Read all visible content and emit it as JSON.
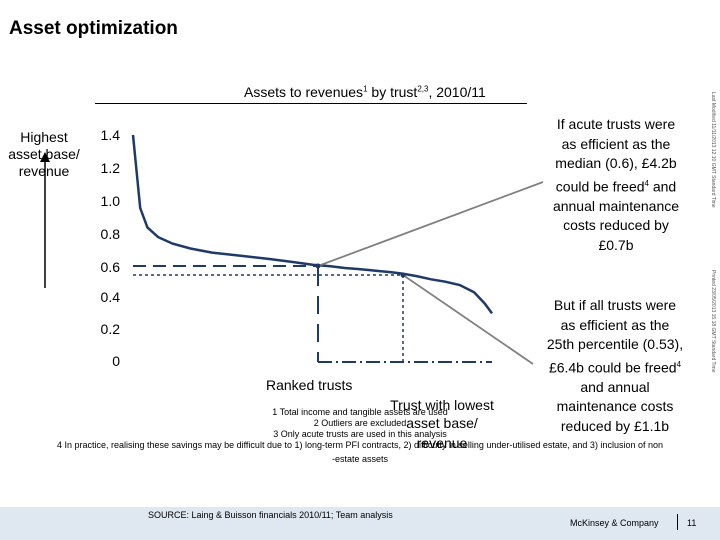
{
  "page": {
    "title": "Asset optimization"
  },
  "chart_title": {
    "text": "Assets to revenues",
    "sup1": "1",
    "mid": " by trust",
    "sup2": "2,3",
    "tail": ", 2010/11"
  },
  "y_axis_title": {
    "line1": "Highest",
    "line2": "asset base/",
    "line3": "revenue"
  },
  "chart_data": {
    "type": "line",
    "ytick_labels": [
      "1.4",
      "1.2",
      "1.0",
      "0.8",
      "0.6",
      "0.4",
      "0.2",
      "0"
    ],
    "ylim": [
      0,
      1.4
    ],
    "series": [
      {
        "x": [
          0.0,
          0.02,
          0.04,
          0.07,
          0.11,
          0.16,
          0.22,
          0.3,
          0.38,
          0.45,
          0.5,
          0.55,
          0.59,
          0.63,
          0.66,
          0.69,
          0.72,
          0.75,
          0.79,
          0.83,
          0.87,
          0.91,
          0.95,
          0.98,
          1.0
        ],
        "y": [
          1.4,
          0.95,
          0.83,
          0.77,
          0.73,
          0.7,
          0.675,
          0.655,
          0.635,
          0.615,
          0.6,
          0.59,
          0.58,
          0.573,
          0.567,
          0.56,
          0.553,
          0.545,
          0.53,
          0.51,
          0.495,
          0.475,
          0.43,
          0.36,
          0.3
        ]
      }
    ],
    "reference_points": [
      {
        "name": "median",
        "y": 0.6,
        "x": 0.5
      },
      {
        "name": "25th percentile",
        "y": 0.53,
        "x": 0.79
      }
    ],
    "xlabel": "Ranked trusts"
  },
  "callouts": {
    "top": {
      "l1": "If acute trusts were",
      "l2": "as efficient as the",
      "l3": "median (0.6), £4.2b",
      "l4a": "could be freed",
      "l4sup": "4",
      "l4b": " and",
      "l5": "annual maintenance",
      "l6": "costs reduced by",
      "l7": "£0.7b"
    },
    "bottom": {
      "l1": "But if all trusts were",
      "l2": "as efficient as the",
      "l3": "25th percentile (0.53),",
      "l4a": "£6.4b could be freed",
      "l4sup": "4",
      "l5": "and annual",
      "l6": "maintenance costs",
      "l7": "reduced by £1.1b"
    }
  },
  "labels": {
    "ranked_trusts": "Ranked trusts",
    "trust_lowest_1": "Trust with lowest",
    "trust_lowest_2": "asset base/",
    "trust_lowest_3": "revenue"
  },
  "footnotes": {
    "f1": "1 Total income and tangible assets are used",
    "f2": "2 Outliers are excluded",
    "f3": "3 Only acute trusts are used in this analysis",
    "f4a": "4 In practice, realising these savings may be difficult due to 1) long-term PFI contracts, 2) difficulty in selling under-utilised estate, and 3) inclusion of non",
    "f4b": "-estate assets"
  },
  "sidebar": {
    "t1": "Last Modified 11/11/2013 12:10 GMT Standard Time",
    "t2": "Printed 23/05/2013 15:18 GMT Standard Time"
  },
  "footer": {
    "source": "SOURCE: Laing & Buisson financials 2010/11; Team analysis",
    "brand": "McKinsey & Company",
    "page_number": "11",
    "background": "#dfe7f1"
  },
  "colors": {
    "line": "#1f3a68",
    "dash": "#1f3a68",
    "connector": "#808080"
  }
}
